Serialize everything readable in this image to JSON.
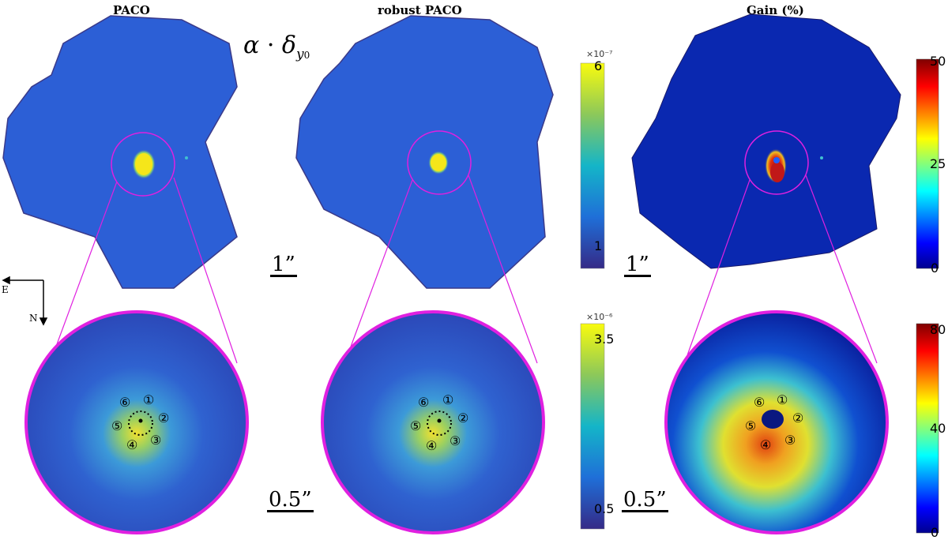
{
  "panels": {
    "left_title": "PACO",
    "middle_title": "robust PACO",
    "right_title": "Gain (%)"
  },
  "formula": {
    "alpha": "α",
    "dot": "·",
    "delta": "δ",
    "sub": "y",
    "subsub": "0"
  },
  "scalebars": {
    "top_left": "1”",
    "top_right": "1”",
    "bottom_left": "0.5”",
    "bottom_right": "0.5”"
  },
  "colorbars": {
    "top_mid": {
      "exponent": "×10⁻⁷",
      "ticks": [
        "6",
        "1"
      ]
    },
    "top_right": {
      "ticks": [
        "50",
        "25",
        "0"
      ]
    },
    "bottom_mid": {
      "exponent": "×10⁻⁶",
      "ticks": [
        "3.5",
        "0.5"
      ]
    },
    "bottom_right": {
      "ticks": [
        "80",
        "40",
        "0"
      ]
    }
  },
  "compass": {
    "east": "E",
    "north": "N"
  },
  "markers": [
    "①",
    "②",
    "③",
    "④",
    "⑤",
    "⑥"
  ],
  "colors": {
    "frame_magenta": "#e020e0",
    "field_blue": "#2a5cd4",
    "gain_blue": "#0a22a8",
    "core_yellow": "#f5e61a",
    "core_red": "#b01010"
  }
}
